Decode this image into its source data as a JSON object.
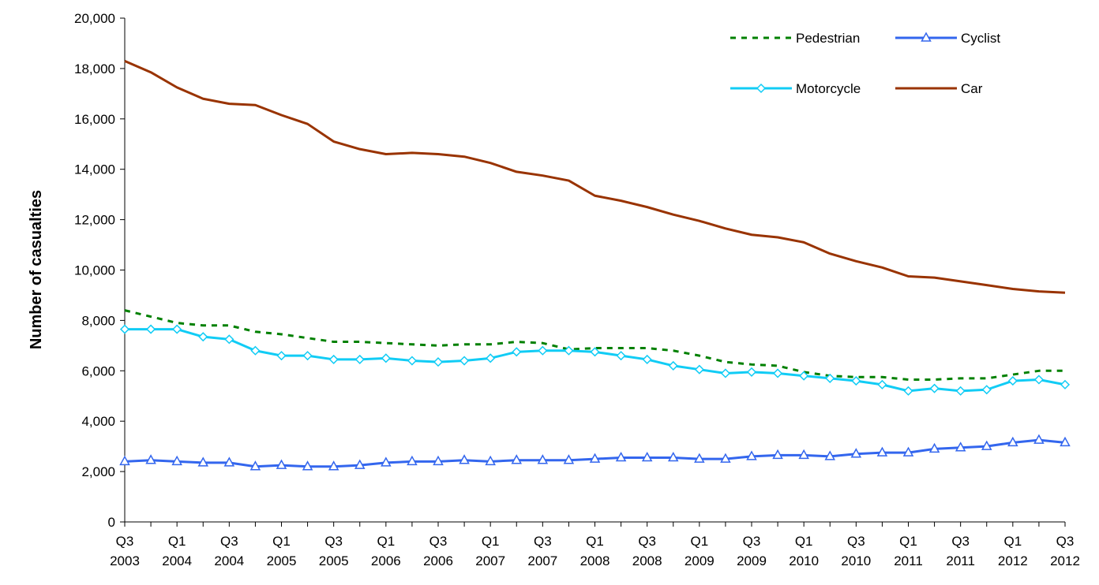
{
  "chart_data": {
    "type": "line",
    "y_label": "Number of casualties",
    "categories": [
      "Q3 2003",
      null,
      "Q1 2004",
      null,
      "Q3 2004",
      null,
      "Q1 2005",
      null,
      "Q3 2005",
      null,
      "Q1 2006",
      null,
      "Q3 2006",
      null,
      "Q1 2007",
      null,
      "Q3 2007",
      null,
      "Q1 2008",
      null,
      "Q3 2008",
      null,
      "Q1 2009",
      null,
      "Q3 2009",
      null,
      "Q1 2010",
      null,
      "Q3 2010",
      null,
      "Q1 2011",
      null,
      "Q3 2011",
      null,
      "Q1 2012",
      null,
      "Q3 2012"
    ],
    "series": [
      {
        "name": "Pedestrian",
        "color": "#008000",
        "style": "dashed",
        "marker": "none",
        "values": [
          8400,
          8150,
          7900,
          7800,
          7800,
          7550,
          7450,
          7300,
          7150,
          7150,
          7100,
          7050,
          7000,
          7050,
          7050,
          7150,
          7100,
          6850,
          6900,
          6900,
          6900,
          6800,
          6600,
          6350,
          6250,
          6200,
          5950,
          5800,
          5750,
          5750,
          5650,
          5650,
          5700,
          5700,
          5850,
          6000,
          6000
        ]
      },
      {
        "name": "Cyclist",
        "color": "#3366ee",
        "style": "solid",
        "marker": "triangle",
        "values": [
          2400,
          2450,
          2400,
          2350,
          2350,
          2200,
          2250,
          2200,
          2200,
          2250,
          2350,
          2400,
          2400,
          2450,
          2400,
          2450,
          2450,
          2450,
          2500,
          2550,
          2550,
          2550,
          2500,
          2500,
          2600,
          2650,
          2650,
          2600,
          2700,
          2750,
          2750,
          2900,
          2950,
          3000,
          3150,
          3250,
          3150
        ]
      },
      {
        "name": "Motorcycle",
        "color": "#11ccf5",
        "style": "solid",
        "marker": "diamond",
        "values": [
          7650,
          7650,
          7650,
          7350,
          7250,
          6800,
          6600,
          6600,
          6450,
          6450,
          6500,
          6400,
          6350,
          6400,
          6500,
          6750,
          6800,
          6800,
          6750,
          6600,
          6450,
          6200,
          6050,
          5900,
          5950,
          5900,
          5800,
          5700,
          5600,
          5450,
          5200,
          5300,
          5200,
          5250,
          5600,
          5650,
          5450
        ]
      },
      {
        "name": "Car",
        "color": "#993300",
        "style": "solid",
        "marker": "none",
        "values": [
          18300,
          17850,
          17250,
          16800,
          16600,
          16550,
          16150,
          15800,
          15100,
          14800,
          14600,
          14650,
          14600,
          14500,
          14250,
          13900,
          13750,
          13550,
          12950,
          12750,
          12500,
          12200,
          11950,
          11650,
          11400,
          11300,
          11100,
          10650,
          10350,
          10100,
          9750,
          9700,
          9550,
          9400,
          9250,
          9150,
          9100
        ]
      }
    ],
    "ylim": [
      0,
      20000
    ],
    "yticks": [
      0,
      {
        "value": 2000,
        "label": "2,000"
      },
      {
        "value": 4000,
        "label": "4,000"
      },
      {
        "value": 6000,
        "label": "6,000"
      },
      {
        "value": 8000,
        "label": "8,000"
      },
      {
        "value": 10000,
        "label": "10,000"
      },
      {
        "value": 12000,
        "label": "12,000"
      },
      {
        "value": 14000,
        "label": "14,000"
      },
      {
        "value": 16000,
        "label": "16,000"
      },
      {
        "value": 18000,
        "label": "18,000"
      },
      {
        "value": 20000,
        "label": "20,000"
      }
    ],
    "grid": false,
    "legend": "top-right"
  }
}
